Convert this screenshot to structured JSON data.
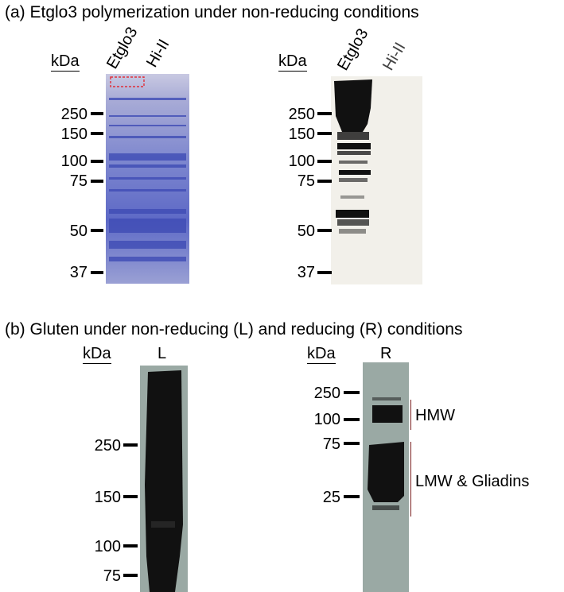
{
  "panel_a": {
    "title": "(a)  Etglo3 polymerization under non-reducing conditions",
    "kda_label": "kDa",
    "lanes": [
      "Etglo3",
      "Hi-II"
    ],
    "markers": [
      "250",
      "150",
      "100",
      "75",
      "50",
      "37"
    ]
  },
  "panel_b": {
    "title": "(b)  Gluten under non-reducing (L) and reducing (R) conditions",
    "left": {
      "kda_label": "kDa",
      "lane": "L",
      "markers": [
        "250",
        "150",
        "100",
        "75"
      ]
    },
    "right": {
      "kda_label": "kDa",
      "lane": "R",
      "markers": [
        "250",
        "100",
        "75",
        "25"
      ],
      "annotations": [
        "HMW",
        "LMW & Gliadins"
      ]
    }
  },
  "colors": {
    "coomassie": "#5b67c4",
    "blot_bg": "#f2f0ea",
    "gluten_bg": "#9aa9a4",
    "band": "#111111",
    "bracket": "#7a1f1f"
  }
}
